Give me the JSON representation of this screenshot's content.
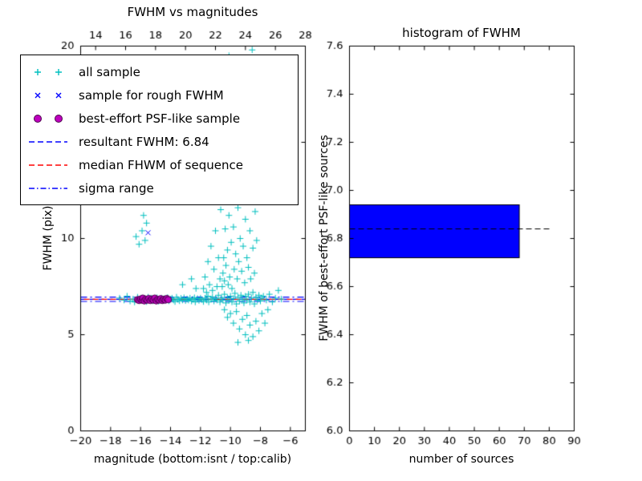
{
  "figure": {
    "background": "#ffffff",
    "axis_color": "#000000"
  },
  "legend": {
    "items": [
      {
        "label": "all sample",
        "marker": "plus",
        "color": "#00bfbf"
      },
      {
        "label": "sample for rough FWHM",
        "marker": "cross",
        "color": "#0000ff"
      },
      {
        "label": "best-effort PSF-like sample",
        "marker": "dot",
        "color": "#bf00bf",
        "edge": "#4b004b"
      },
      {
        "label": "resultant FWHM: 6.84",
        "marker": "dashed",
        "color": "#0000ff"
      },
      {
        "label": "median FHWM of sequence",
        "marker": "dashed",
        "color": "#ff0000"
      },
      {
        "label": "sigma range",
        "marker": "dashdot",
        "color": "#0000ff"
      }
    ]
  },
  "chart_data": [
    {
      "type": "scatter",
      "title": "FWHM vs magnitudes",
      "xlabel": "magnitude (bottom:isnt / top:calib)",
      "ylabel": "FWHM (pix)",
      "xlim_bottom": [
        -20,
        -5
      ],
      "xlim_top": [
        13,
        28
      ],
      "ylim": [
        0,
        20
      ],
      "x_ticks_bottom": [
        -20,
        -18,
        -16,
        -14,
        -12,
        -10,
        -8,
        -6
      ],
      "x_ticks_top": [
        14,
        16,
        18,
        20,
        22,
        24,
        26,
        28
      ],
      "y_ticks": [
        0,
        5,
        10,
        15,
        20
      ],
      "grid": false,
      "legend_position": "upper-left",
      "series": [
        {
          "name": "all sample",
          "marker": "plus",
          "color": "#00bfbf",
          "points": [
            [
              -17.4,
              6.9
            ],
            [
              -17.1,
              6.8
            ],
            [
              -16.9,
              7.0
            ],
            [
              -16.7,
              6.75
            ],
            [
              -16.5,
              6.85
            ],
            [
              -16.4,
              6.7
            ],
            [
              -16.2,
              6.95
            ],
            [
              -16.1,
              6.8
            ],
            [
              -15.95,
              6.9
            ],
            [
              -15.8,
              6.78
            ],
            [
              -15.7,
              6.88
            ],
            [
              -15.6,
              6.72
            ],
            [
              -15.5,
              6.95
            ],
            [
              -15.4,
              6.82
            ],
            [
              -15.3,
              6.9
            ],
            [
              -15.2,
              6.76
            ],
            [
              -15.1,
              6.86
            ],
            [
              -15.0,
              6.8
            ],
            [
              -14.9,
              6.92
            ],
            [
              -14.8,
              6.74
            ],
            [
              -14.7,
              6.84
            ],
            [
              -14.6,
              6.9
            ],
            [
              -14.5,
              6.78
            ],
            [
              -14.4,
              6.88
            ],
            [
              -14.3,
              6.8
            ],
            [
              -14.2,
              6.93
            ],
            [
              -14.1,
              6.76
            ],
            [
              -14.0,
              6.85
            ],
            [
              -13.9,
              6.9
            ],
            [
              -13.8,
              6.8
            ],
            [
              -13.7,
              6.72
            ],
            [
              -13.6,
              6.95
            ],
            [
              -13.5,
              6.83
            ],
            [
              -13.4,
              6.76
            ],
            [
              -13.3,
              6.89
            ],
            [
              -13.2,
              6.8
            ],
            [
              -13.1,
              6.92
            ],
            [
              -13.0,
              6.77
            ],
            [
              -12.9,
              6.86
            ],
            [
              -12.8,
              6.8
            ],
            [
              -12.7,
              6.9
            ],
            [
              -12.6,
              6.75
            ],
            [
              -12.5,
              6.84
            ],
            [
              -12.4,
              6.92
            ],
            [
              -12.35,
              6.7
            ],
            [
              -12.2,
              6.88
            ],
            [
              -12.1,
              6.78
            ],
            [
              -12.0,
              6.9
            ],
            [
              -11.9,
              6.82
            ],
            [
              -11.8,
              6.72
            ],
            [
              -11.7,
              6.9
            ],
            [
              -11.6,
              6.8
            ],
            [
              -11.5,
              7.0
            ],
            [
              -11.45,
              6.7
            ],
            [
              -11.3,
              6.85
            ],
            [
              -11.2,
              6.95
            ],
            [
              -11.1,
              6.75
            ],
            [
              -11.0,
              6.88
            ],
            [
              -10.9,
              6.8
            ],
            [
              -10.8,
              7.05
            ],
            [
              -10.7,
              6.7
            ],
            [
              -10.6,
              6.9
            ],
            [
              -10.5,
              6.8
            ],
            [
              -10.4,
              7.1
            ],
            [
              -10.3,
              6.65
            ],
            [
              -10.2,
              6.92
            ],
            [
              -10.1,
              6.78
            ],
            [
              -10.0,
              7.0
            ],
            [
              -9.9,
              6.7
            ],
            [
              -9.8,
              6.88
            ],
            [
              -9.7,
              7.15
            ],
            [
              -9.6,
              6.6
            ],
            [
              -9.5,
              6.95
            ],
            [
              -9.4,
              6.75
            ],
            [
              -9.3,
              7.05
            ],
            [
              -9.2,
              6.85
            ],
            [
              -9.1,
              6.65
            ],
            [
              -9.0,
              7.0
            ],
            [
              -8.9,
              6.8
            ],
            [
              -8.8,
              7.1
            ],
            [
              -8.7,
              6.7
            ],
            [
              -8.6,
              6.9
            ],
            [
              -8.5,
              7.2
            ],
            [
              -8.4,
              6.6
            ],
            [
              -8.3,
              6.95
            ],
            [
              -8.2,
              6.8
            ],
            [
              -8.1,
              7.05
            ],
            [
              -8.0,
              6.75
            ],
            [
              -7.9,
              6.9
            ],
            [
              -7.8,
              7.0
            ],
            [
              -7.6,
              6.8
            ],
            [
              -7.4,
              7.1
            ],
            [
              -7.2,
              6.7
            ],
            [
              -7.0,
              6.9
            ],
            [
              -6.8,
              7.3
            ],
            [
              -6.6,
              6.85
            ],
            [
              -10.55,
              7.5
            ],
            [
              -10.5,
              8.2
            ],
            [
              -10.45,
              9.0
            ],
            [
              -10.4,
              7.8
            ],
            [
              -10.35,
              10.5
            ],
            [
              -10.3,
              8.6
            ],
            [
              -10.25,
              12.0
            ],
            [
              -10.2,
              9.4
            ],
            [
              -10.15,
              7.6
            ],
            [
              -10.1,
              11.2
            ],
            [
              -10.05,
              8.0
            ],
            [
              -10.0,
              13.5
            ],
            [
              -9.95,
              9.8
            ],
            [
              -9.9,
              7.4
            ],
            [
              -9.85,
              15.0
            ],
            [
              -9.8,
              10.6
            ],
            [
              -9.75,
              8.4
            ],
            [
              -9.7,
              12.8
            ],
            [
              -9.65,
              9.2
            ],
            [
              -9.6,
              16.5
            ],
            [
              -9.55,
              7.9
            ],
            [
              -9.5,
              11.6
            ],
            [
              -9.45,
              8.8
            ],
            [
              -9.4,
              14.2
            ],
            [
              -9.35,
              10.0
            ],
            [
              -9.3,
              18.0
            ],
            [
              -9.25,
              8.3
            ],
            [
              -9.2,
              12.4
            ],
            [
              -9.15,
              9.6
            ],
            [
              -9.1,
              15.8
            ],
            [
              -9.05,
              7.7
            ],
            [
              -9.0,
              11.0
            ],
            [
              -8.95,
              19.2
            ],
            [
              -8.9,
              9.0
            ],
            [
              -8.85,
              13.0
            ],
            [
              -8.8,
              8.5
            ],
            [
              -8.75,
              16.0
            ],
            [
              -8.7,
              10.4
            ],
            [
              -8.65,
              7.9
            ],
            [
              -8.6,
              12.6
            ],
            [
              -8.55,
              19.8
            ],
            [
              -8.5,
              9.5
            ],
            [
              -8.45,
              14.6
            ],
            [
              -8.4,
              8.2
            ],
            [
              -8.35,
              11.4
            ],
            [
              -8.3,
              17.4
            ],
            [
              -8.25,
              9.9
            ],
            [
              -8.2,
              13.8
            ],
            [
              -11.8,
              7.4
            ],
            [
              -11.7,
              8.0
            ],
            [
              -11.6,
              7.2
            ],
            [
              -11.5,
              8.8
            ],
            [
              -11.4,
              7.6
            ],
            [
              -11.3,
              9.6
            ],
            [
              -11.2,
              7.3
            ],
            [
              -11.1,
              8.4
            ],
            [
              -11.0,
              10.4
            ],
            [
              -10.9,
              7.5
            ],
            [
              -10.8,
              9.0
            ],
            [
              -10.7,
              7.9
            ],
            [
              -10.65,
              11.5
            ],
            [
              -10.4,
              6.3
            ],
            [
              -10.2,
              5.9
            ],
            [
              -10.0,
              6.1
            ],
            [
              -9.8,
              5.6
            ],
            [
              -9.6,
              6.2
            ],
            [
              -9.4,
              5.3
            ],
            [
              -9.2,
              5.8
            ],
            [
              -9.0,
              5.0
            ],
            [
              -8.9,
              6.0
            ],
            [
              -8.7,
              5.5
            ],
            [
              -8.5,
              4.9
            ],
            [
              -8.3,
              5.7
            ],
            [
              -8.1,
              5.2
            ],
            [
              -7.9,
              6.1
            ],
            [
              -7.7,
              5.6
            ],
            [
              -7.5,
              6.3
            ],
            [
              -9.5,
              4.6
            ],
            [
              -8.8,
              4.7
            ],
            [
              -16.3,
              10.1
            ],
            [
              -16.1,
              9.7
            ],
            [
              -15.9,
              10.4
            ],
            [
              -15.8,
              11.2
            ],
            [
              -15.7,
              9.9
            ],
            [
              -15.6,
              10.8
            ],
            [
              -15.5,
              12.1
            ],
            [
              -15.3,
              13.0
            ],
            [
              -13.2,
              7.6
            ],
            [
              -12.6,
              7.9
            ],
            [
              -12.3,
              7.4
            ],
            [
              -10.1,
              19.5
            ],
            [
              -9.9,
              18.6
            ]
          ]
        },
        {
          "name": "sample for rough FWHM",
          "marker": "cross",
          "color": "#0000ff",
          "points": [
            [
              -15.5,
              10.3
            ],
            [
              -15.9,
              6.85
            ],
            [
              -15.6,
              6.8
            ],
            [
              -15.2,
              6.88
            ],
            [
              -14.9,
              6.82
            ],
            [
              -14.6,
              6.86
            ],
            [
              -14.3,
              6.8
            ]
          ]
        },
        {
          "name": "best-effort PSF-like sample",
          "marker": "dot",
          "color": "#bf00bf",
          "edge": "#4b004b",
          "points": [
            [
              -16.2,
              6.82
            ],
            [
              -16.1,
              6.78
            ],
            [
              -16.0,
              6.85
            ],
            [
              -15.9,
              6.8
            ],
            [
              -15.85,
              6.9
            ],
            [
              -15.75,
              6.76
            ],
            [
              -15.65,
              6.84
            ],
            [
              -15.55,
              6.8
            ],
            [
              -15.45,
              6.88
            ],
            [
              -15.35,
              6.78
            ],
            [
              -15.25,
              6.85
            ],
            [
              -15.15,
              6.8
            ],
            [
              -15.05,
              6.9
            ],
            [
              -14.95,
              6.76
            ],
            [
              -14.85,
              6.83
            ],
            [
              -14.75,
              6.8
            ],
            [
              -14.65,
              6.87
            ],
            [
              -14.55,
              6.78
            ],
            [
              -14.45,
              6.84
            ],
            [
              -14.35,
              6.8
            ],
            [
              -14.25,
              6.88
            ],
            [
              -14.15,
              6.82
            ]
          ]
        }
      ],
      "lines": [
        {
          "name": "resultant FWHM",
          "y": 6.84,
          "color": "#0000ff",
          "style": "dashed",
          "dashOffset": 0
        },
        {
          "name": "median FHWM of sequence",
          "y": 6.84,
          "color": "#ff0000",
          "style": "dashed",
          "dashOffset": 7
        },
        {
          "name": "sigma range low",
          "y": 6.73,
          "color": "#0000ff",
          "style": "dashdot",
          "dashOffset": 0
        },
        {
          "name": "sigma range high",
          "y": 6.95,
          "color": "#0000ff",
          "style": "dashdot",
          "dashOffset": 0
        }
      ]
    },
    {
      "type": "bar",
      "orientation": "horizontal",
      "title": "histogram of FWHM",
      "xlabel": "number of sources",
      "ylabel": "FWHM of best-effort PSF-like sources",
      "xlim": [
        0,
        90
      ],
      "ylim": [
        6.0,
        7.6
      ],
      "x_ticks": [
        0,
        10,
        20,
        30,
        40,
        50,
        60,
        70,
        80,
        90
      ],
      "y_ticks": [
        6.0,
        6.2,
        6.4,
        6.6,
        6.8,
        7.0,
        7.2,
        7.4,
        7.6
      ],
      "grid": false,
      "bars": [
        {
          "fwhm_from": 6.72,
          "fwhm_to": 6.94,
          "count": 68,
          "color": "#0000ff",
          "edge": "#000000"
        }
      ],
      "lines": [
        {
          "name": "resultant FWHM",
          "y": 6.84,
          "x_extent": 80.5,
          "color": "#000000",
          "style": "dashed"
        }
      ]
    }
  ]
}
